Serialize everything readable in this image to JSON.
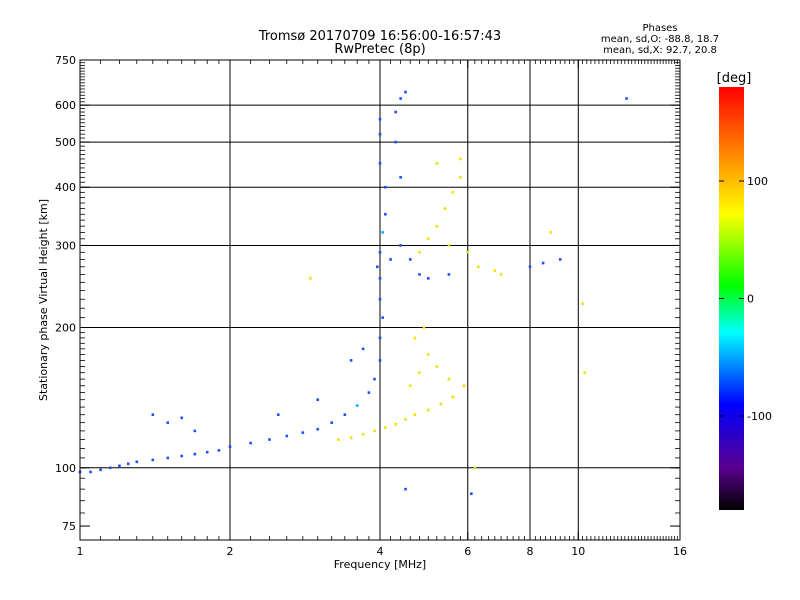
{
  "chart_data": {
    "type": "scatter",
    "title": "Tromsø 20170709 16:56:00-16:57:43",
    "subtitle": "RwPretec (8p)",
    "xlabel": "Frequency [MHz]",
    "ylabel": "Stationary phase Virtual Height [km]",
    "xscale": "log",
    "yscale": "log",
    "xlim": [
      1,
      16
    ],
    "ylim": [
      70,
      750
    ],
    "xticks": [
      1,
      2,
      4,
      6,
      8,
      10,
      16
    ],
    "xtick_labels": [
      "1",
      "2",
      "4",
      "6",
      "8",
      "10",
      "16"
    ],
    "yticks": [
      75,
      100,
      200,
      300,
      400,
      500,
      600,
      750
    ],
    "ytick_labels": [
      "75",
      "100",
      "200",
      "300",
      "400",
      "500",
      "600",
      "750"
    ],
    "xgrid": [
      2,
      4,
      6,
      8,
      10
    ],
    "ygrid": [
      100,
      200,
      300,
      400,
      500,
      600
    ],
    "stats": {
      "title": "Phases",
      "line1": "mean, sd,O: -88.8, 18.7",
      "line2": "mean, sd,X:  92.7, 20.8"
    },
    "colorbar": {
      "label": "[deg]",
      "min": -180,
      "max": 180,
      "ticks": [
        100,
        0,
        -100
      ],
      "tick_labels": [
        "100",
        "0",
        "-100"
      ]
    },
    "series": [
      {
        "name": "O-mode",
        "mean_phase": -88.8,
        "sd_phase": 18.7,
        "color_hint": "blue",
        "points": [
          [
            1.0,
            98
          ],
          [
            1.05,
            98
          ],
          [
            1.1,
            99
          ],
          [
            1.15,
            100
          ],
          [
            1.2,
            101
          ],
          [
            1.25,
            102
          ],
          [
            1.3,
            103
          ],
          [
            1.4,
            104
          ],
          [
            1.5,
            105
          ],
          [
            1.6,
            106
          ],
          [
            1.7,
            107
          ],
          [
            1.8,
            108
          ],
          [
            1.9,
            109
          ],
          [
            2.0,
            111
          ],
          [
            2.2,
            113
          ],
          [
            2.4,
            115
          ],
          [
            2.6,
            117
          ],
          [
            2.8,
            119
          ],
          [
            3.0,
            121
          ],
          [
            3.2,
            125
          ],
          [
            3.4,
            130
          ],
          [
            3.6,
            136
          ],
          [
            3.8,
            145
          ],
          [
            3.9,
            155
          ],
          [
            4.0,
            170
          ],
          [
            4.0,
            190
          ],
          [
            4.05,
            210
          ],
          [
            4.0,
            230
          ],
          [
            4.0,
            255
          ],
          [
            3.95,
            270
          ],
          [
            4.0,
            290
          ],
          [
            4.05,
            320
          ],
          [
            4.1,
            350
          ],
          [
            4.1,
            400
          ],
          [
            4.0,
            450
          ],
          [
            4.0,
            520
          ],
          [
            4.0,
            560
          ],
          [
            4.3,
            580
          ],
          [
            4.4,
            620
          ],
          [
            4.5,
            640
          ],
          [
            4.4,
            300
          ],
          [
            4.2,
            280
          ],
          [
            4.6,
            280
          ],
          [
            4.4,
            420
          ],
          [
            4.3,
            500
          ],
          [
            4.8,
            260
          ],
          [
            5.0,
            255
          ],
          [
            5.5,
            260
          ],
          [
            8.0,
            270
          ],
          [
            8.5,
            275
          ],
          [
            9.2,
            280
          ],
          [
            1.4,
            130
          ],
          [
            1.5,
            125
          ],
          [
            1.6,
            128
          ],
          [
            1.7,
            120
          ],
          [
            3.0,
            140
          ],
          [
            3.5,
            170
          ],
          [
            3.7,
            180
          ],
          [
            2.5,
            130
          ],
          [
            12.5,
            620
          ],
          [
            4.5,
            90
          ],
          [
            6.1,
            88
          ]
        ]
      },
      {
        "name": "X-mode",
        "mean_phase": 92.7,
        "sd_phase": 20.8,
        "color_hint": "yellow",
        "points": [
          [
            3.3,
            115
          ],
          [
            3.5,
            116
          ],
          [
            3.7,
            118
          ],
          [
            3.9,
            120
          ],
          [
            4.1,
            122
          ],
          [
            4.3,
            124
          ],
          [
            4.5,
            127
          ],
          [
            4.7,
            130
          ],
          [
            5.0,
            133
          ],
          [
            5.3,
            137
          ],
          [
            5.6,
            142
          ],
          [
            5.9,
            150
          ],
          [
            4.6,
            150
          ],
          [
            4.8,
            160
          ],
          [
            5.0,
            175
          ],
          [
            4.7,
            190
          ],
          [
            4.9,
            200
          ],
          [
            5.2,
            165
          ],
          [
            5.5,
            155
          ],
          [
            4.8,
            290
          ],
          [
            5.0,
            310
          ],
          [
            5.2,
            330
          ],
          [
            5.4,
            360
          ],
          [
            5.6,
            390
          ],
          [
            5.8,
            420
          ],
          [
            5.5,
            300
          ],
          [
            6.0,
            290
          ],
          [
            6.3,
            270
          ],
          [
            6.8,
            265
          ],
          [
            7.0,
            260
          ],
          [
            5.2,
            450
          ],
          [
            5.8,
            460
          ],
          [
            8.8,
            320
          ],
          [
            2.9,
            255
          ],
          [
            10.2,
            225
          ],
          [
            10.3,
            160
          ],
          [
            6.2,
            100
          ]
        ]
      }
    ]
  }
}
